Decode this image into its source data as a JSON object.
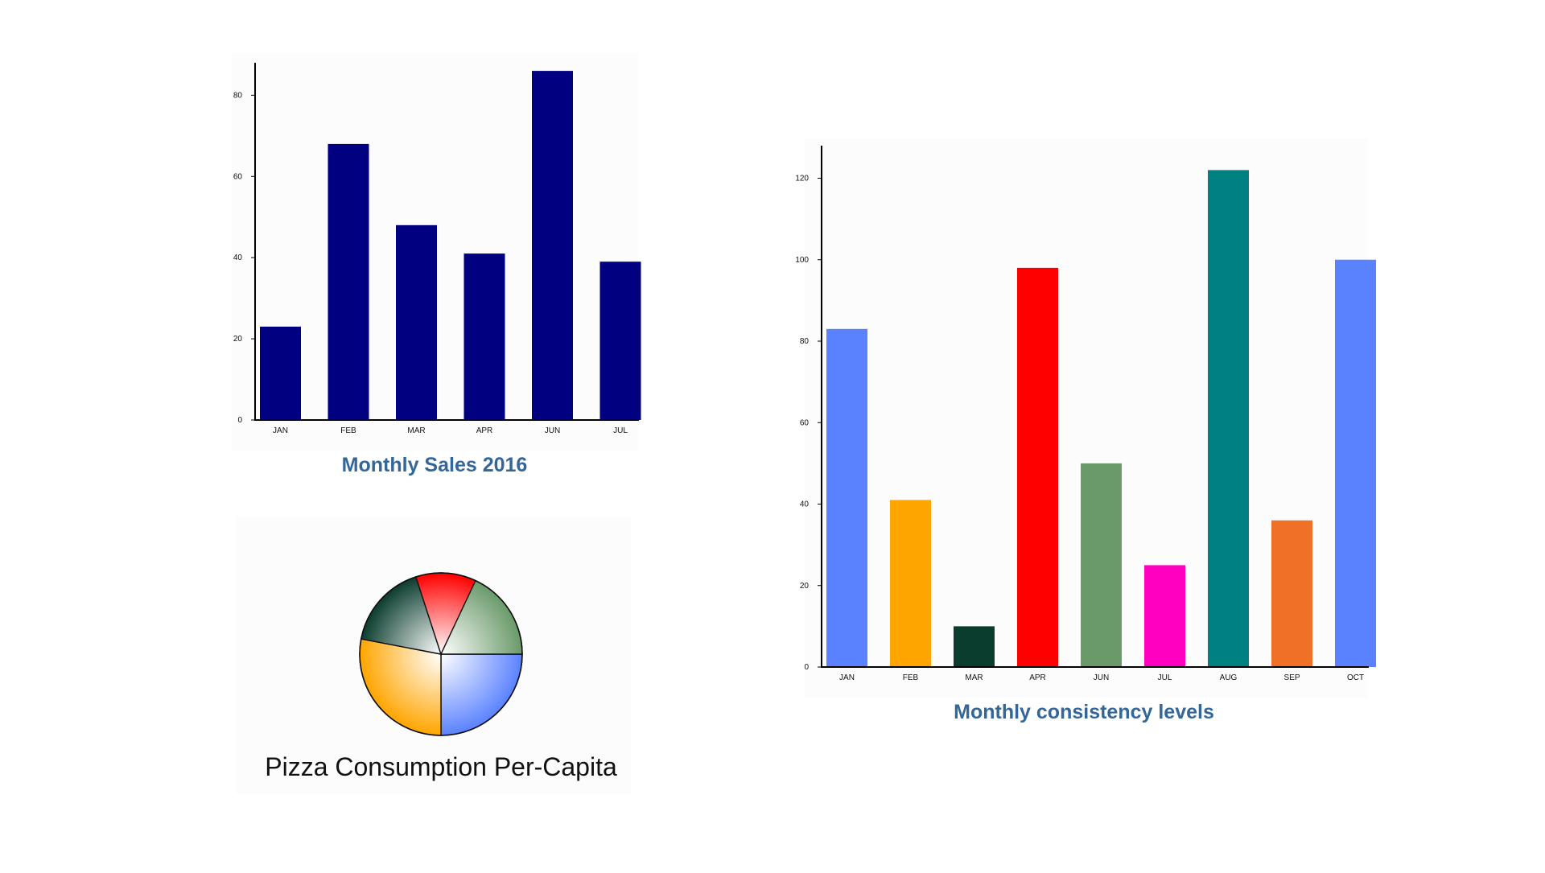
{
  "chart_data": [
    {
      "type": "bar",
      "title": "Monthly Sales 2016",
      "categories": [
        "JAN",
        "FEB",
        "MAR",
        "APR",
        "JUN",
        "JUL"
      ],
      "values": [
        23,
        68,
        48,
        41,
        86,
        39
      ],
      "color": "#000080",
      "yticks": [
        "0",
        "20",
        "40",
        "60",
        "80"
      ],
      "ylim": [
        0,
        88
      ],
      "grid": false
    },
    {
      "type": "pie",
      "title": "Pizza Consumption Per-Capita",
      "slices": [
        {
          "value": 25,
          "color": "#5a82ff"
        },
        {
          "value": 28,
          "color": "#ffa500"
        },
        {
          "value": 17,
          "color": "#0b3d2e"
        },
        {
          "value": 12,
          "color": "#ff0000"
        },
        {
          "value": 18,
          "color": "#6a9a6a"
        }
      ]
    },
    {
      "type": "bar",
      "title": "Monthly consistency levels",
      "categories": [
        "JAN",
        "FEB",
        "MAR",
        "APR",
        "JUN",
        "JUL",
        "AUG",
        "SEP",
        "OCT"
      ],
      "values": [
        83,
        41,
        10,
        98,
        50,
        25,
        122,
        36,
        100
      ],
      "colors": [
        "#5a82ff",
        "#ffa500",
        "#0b3d2e",
        "#ff0000",
        "#6a9a6a",
        "#ff00c0",
        "#008080",
        "#f07028",
        "#5a82ff"
      ],
      "yticks": [
        "0",
        "20",
        "40",
        "60",
        "80",
        "100",
        "120"
      ],
      "ylim": [
        0,
        128
      ],
      "grid": false
    }
  ]
}
